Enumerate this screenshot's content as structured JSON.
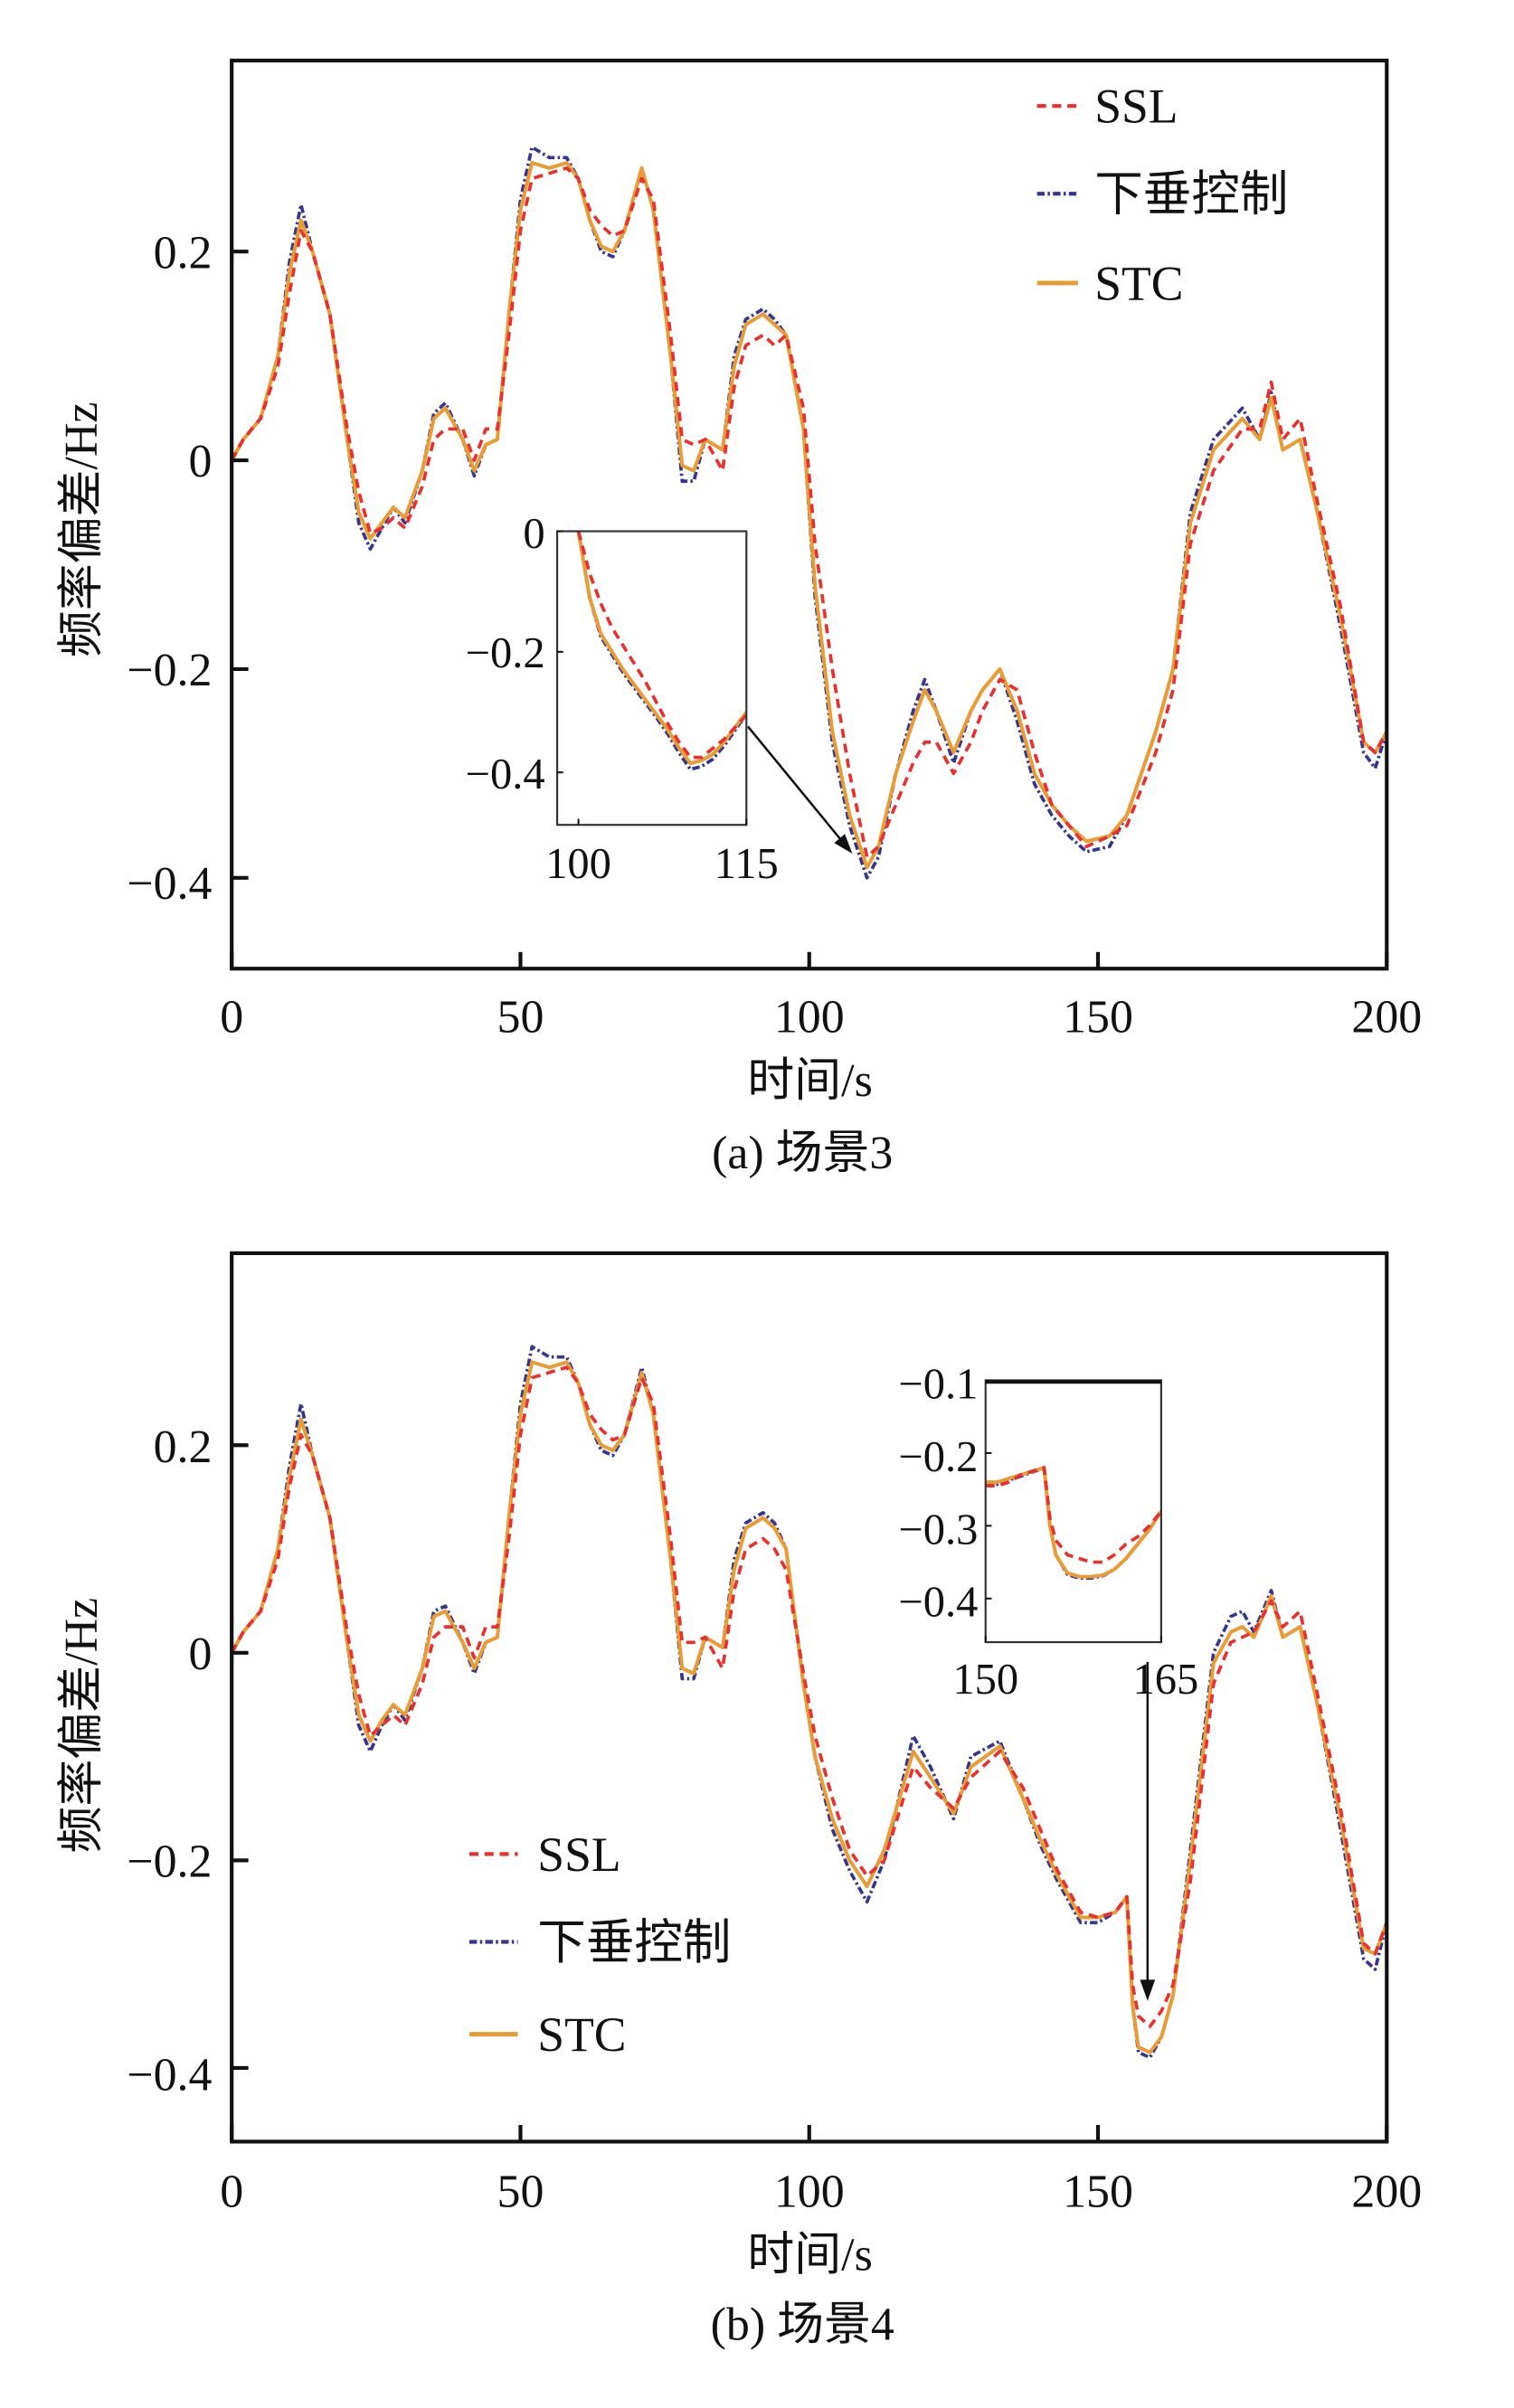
{
  "chart_data": [
    {
      "type": "line",
      "caption": "(a) 场景3",
      "xlabel": "时间/s",
      "ylabel": "频率偏差/Hz",
      "xlim": [
        0,
        200
      ],
      "ylim": [
        -0.487,
        0.383
      ],
      "xticks": [
        "0",
        "50",
        "100",
        "150",
        "200"
      ],
      "yticks": [
        "0.2",
        "0",
        "−0.2",
        "−0.4"
      ],
      "legend": {
        "position": "top-right",
        "entries": [
          "SSL",
          "下垂控制",
          "STC"
        ]
      },
      "colors": {
        "SSL": "#e8312f",
        "droop": "#35358f",
        "STC": "#e89c35"
      },
      "x": [
        0,
        2,
        5,
        8,
        10,
        12,
        14,
        17,
        20,
        22,
        24,
        26,
        28,
        30,
        33,
        35,
        37,
        40,
        42,
        44,
        46,
        48,
        50,
        52,
        55,
        58,
        60,
        62,
        64,
        66,
        68,
        71,
        73,
        76,
        78,
        80,
        82,
        85,
        87,
        89,
        92,
        94,
        96,
        99,
        101,
        104,
        107,
        110,
        112,
        115,
        118,
        120,
        122,
        125,
        128,
        130,
        133,
        136,
        139,
        142,
        145,
        148,
        152,
        155,
        160,
        163,
        166,
        170,
        175,
        178,
        180,
        182,
        185,
        188,
        192,
        196,
        198,
        200
      ],
      "series": [
        {
          "name": "SSL",
          "values": [
            0,
            0.02,
            0.04,
            0.09,
            0.16,
            0.22,
            0.2,
            0.14,
            0.03,
            -0.03,
            -0.07,
            -0.065,
            -0.055,
            -0.065,
            -0.025,
            0.02,
            0.03,
            0.03,
            0.0,
            0.03,
            0.03,
            0.12,
            0.22,
            0.27,
            0.275,
            0.28,
            0.27,
            0.24,
            0.225,
            0.215,
            0.22,
            0.27,
            0.25,
            0.12,
            0.02,
            0.015,
            0.02,
            -0.01,
            0.07,
            0.11,
            0.12,
            0.11,
            0.12,
            0.05,
            -0.08,
            -0.2,
            -0.3,
            -0.38,
            -0.37,
            -0.33,
            -0.29,
            -0.27,
            -0.27,
            -0.3,
            -0.27,
            -0.24,
            -0.21,
            -0.22,
            -0.28,
            -0.33,
            -0.35,
            -0.37,
            -0.36,
            -0.35,
            -0.28,
            -0.22,
            -0.08,
            -0.01,
            0.03,
            0.03,
            0.075,
            0.02,
            0.04,
            -0.04,
            -0.14,
            -0.27,
            -0.28,
            -0.26
          ]
        },
        {
          "name": "下垂控制",
          "values": [
            0,
            0.02,
            0.04,
            0.1,
            0.19,
            0.245,
            0.2,
            0.14,
            0.02,
            -0.06,
            -0.085,
            -0.065,
            -0.045,
            -0.06,
            -0.01,
            0.045,
            0.055,
            0.02,
            -0.015,
            0.015,
            0.02,
            0.14,
            0.25,
            0.3,
            0.29,
            0.29,
            0.27,
            0.23,
            0.2,
            0.195,
            0.22,
            0.28,
            0.24,
            0.1,
            -0.02,
            -0.02,
            0.02,
            0.01,
            0.1,
            0.135,
            0.145,
            0.135,
            0.12,
            0.03,
            -0.13,
            -0.27,
            -0.35,
            -0.4,
            -0.38,
            -0.3,
            -0.24,
            -0.21,
            -0.24,
            -0.29,
            -0.24,
            -0.22,
            -0.2,
            -0.25,
            -0.31,
            -0.34,
            -0.36,
            -0.375,
            -0.37,
            -0.34,
            -0.26,
            -0.2,
            -0.05,
            0.02,
            0.05,
            0.02,
            0.065,
            0.01,
            0.02,
            -0.05,
            -0.16,
            -0.28,
            -0.295,
            -0.26
          ]
        },
        {
          "name": "STC",
          "values": [
            0,
            0.02,
            0.04,
            0.1,
            0.18,
            0.23,
            0.2,
            0.14,
            0.02,
            -0.05,
            -0.075,
            -0.06,
            -0.045,
            -0.055,
            -0.01,
            0.04,
            0.05,
            0.02,
            -0.01,
            0.015,
            0.02,
            0.14,
            0.24,
            0.285,
            0.28,
            0.285,
            0.27,
            0.23,
            0.205,
            0.2,
            0.22,
            0.28,
            0.24,
            0.1,
            -0.005,
            -0.01,
            0.02,
            0.01,
            0.09,
            0.13,
            0.14,
            0.13,
            0.12,
            0.03,
            -0.12,
            -0.26,
            -0.34,
            -0.39,
            -0.37,
            -0.3,
            -0.25,
            -0.22,
            -0.24,
            -0.28,
            -0.24,
            -0.22,
            -0.2,
            -0.24,
            -0.3,
            -0.33,
            -0.35,
            -0.365,
            -0.36,
            -0.34,
            -0.26,
            -0.2,
            -0.06,
            0.01,
            0.04,
            0.02,
            0.06,
            0.01,
            0.02,
            -0.05,
            -0.15,
            -0.27,
            -0.28,
            -0.26
          ]
        }
      ],
      "inset": {
        "xlim": [
          98.1,
          115
        ],
        "ylim": [
          -0.487,
          0
        ],
        "xticks": [
          "100",
          "115"
        ],
        "yticks": [
          "0",
          "−0.2",
          "−0.4"
        ],
        "x": [
          100,
          101,
          102,
          103,
          104,
          105,
          106,
          107,
          108,
          109,
          110,
          111,
          112,
          113,
          114,
          115
        ],
        "series": [
          {
            "name": "SSL",
            "values": [
              0,
              -0.07,
              -0.12,
              -0.16,
              -0.19,
              -0.22,
              -0.25,
              -0.285,
              -0.32,
              -0.35,
              -0.375,
              -0.375,
              -0.36,
              -0.345,
              -0.325,
              -0.305
            ]
          },
          {
            "name": "下垂控制",
            "values": [
              0,
              -0.11,
              -0.175,
              -0.205,
              -0.235,
              -0.26,
              -0.285,
              -0.31,
              -0.337,
              -0.368,
              -0.395,
              -0.39,
              -0.378,
              -0.356,
              -0.33,
              -0.303
            ]
          },
          {
            "name": "STC",
            "values": [
              0,
              -0.11,
              -0.17,
              -0.2,
              -0.23,
              -0.255,
              -0.28,
              -0.305,
              -0.33,
              -0.36,
              -0.385,
              -0.38,
              -0.37,
              -0.35,
              -0.325,
              -0.3
            ]
          }
        ]
      }
    },
    {
      "type": "line",
      "caption": "(b) 场景4",
      "xlabel": "时间/s",
      "ylabel": "频率偏差/Hz",
      "xlim": [
        0,
        200
      ],
      "ylim": [
        -0.471,
        0.385
      ],
      "xticks": [
        "0",
        "50",
        "100",
        "150",
        "200"
      ],
      "yticks": [
        "0.2",
        "0",
        "−0.2",
        "−0.4"
      ],
      "legend": {
        "position": "bottom-left",
        "entries": [
          "SSL",
          "下垂控制",
          "STC"
        ]
      },
      "colors": {
        "SSL": "#e8312f",
        "droop": "#35358f",
        "STC": "#e89c35"
      },
      "x": [
        0,
        2,
        5,
        8,
        10,
        12,
        14,
        17,
        20,
        22,
        24,
        26,
        28,
        30,
        33,
        35,
        37,
        40,
        42,
        44,
        46,
        48,
        50,
        52,
        55,
        58,
        60,
        62,
        64,
        66,
        68,
        71,
        73,
        76,
        78,
        80,
        82,
        85,
        87,
        89,
        92,
        94,
        96,
        99,
        101,
        104,
        107,
        110,
        113,
        118,
        121,
        125,
        128,
        133,
        137,
        140,
        143,
        147,
        150,
        153,
        155,
        156,
        157,
        159,
        161,
        163,
        166,
        170,
        173,
        175,
        177,
        180,
        182,
        185,
        188,
        192,
        196,
        198,
        200
      ],
      "series": [
        {
          "name": "SSL",
          "values": [
            0,
            0.02,
            0.04,
            0.09,
            0.16,
            0.21,
            0.19,
            0.13,
            0.02,
            -0.04,
            -0.08,
            -0.07,
            -0.06,
            -0.07,
            -0.03,
            0.015,
            0.025,
            0.025,
            -0.005,
            0.025,
            0.025,
            0.11,
            0.21,
            0.265,
            0.27,
            0.275,
            0.26,
            0.23,
            0.215,
            0.205,
            0.21,
            0.265,
            0.24,
            0.11,
            0.01,
            0.01,
            0.015,
            -0.015,
            0.06,
            0.1,
            0.11,
            0.1,
            0.08,
            -0.02,
            -0.08,
            -0.14,
            -0.19,
            -0.215,
            -0.2,
            -0.11,
            -0.13,
            -0.15,
            -0.12,
            -0.095,
            -0.13,
            -0.17,
            -0.21,
            -0.25,
            -0.255,
            -0.25,
            -0.235,
            -0.32,
            -0.35,
            -0.36,
            -0.345,
            -0.32,
            -0.22,
            -0.03,
            0.01,
            0.015,
            0.02,
            0.05,
            0.025,
            0.04,
            -0.04,
            -0.15,
            -0.28,
            -0.29,
            -0.26
          ]
        },
        {
          "name": "下垂控制",
          "values": [
            0,
            0.02,
            0.04,
            0.1,
            0.18,
            0.24,
            0.19,
            0.13,
            0.01,
            -0.07,
            -0.095,
            -0.07,
            -0.05,
            -0.065,
            -0.015,
            0.04,
            0.045,
            0.01,
            -0.02,
            0.01,
            0.015,
            0.13,
            0.24,
            0.295,
            0.285,
            0.285,
            0.26,
            0.22,
            0.195,
            0.19,
            0.21,
            0.275,
            0.23,
            0.09,
            -0.025,
            -0.025,
            0.015,
            0.005,
            0.09,
            0.125,
            0.135,
            0.125,
            0.1,
            -0.03,
            -0.1,
            -0.17,
            -0.21,
            -0.24,
            -0.2,
            -0.08,
            -0.11,
            -0.16,
            -0.1,
            -0.085,
            -0.14,
            -0.185,
            -0.22,
            -0.26,
            -0.26,
            -0.25,
            -0.235,
            -0.34,
            -0.385,
            -0.39,
            -0.37,
            -0.33,
            -0.19,
            0.0,
            0.035,
            0.04,
            0.02,
            0.06,
            0.015,
            0.025,
            -0.05,
            -0.17,
            -0.295,
            -0.305,
            -0.26
          ]
        },
        {
          "name": "STC",
          "values": [
            0,
            0.02,
            0.04,
            0.1,
            0.17,
            0.225,
            0.19,
            0.13,
            0.01,
            -0.06,
            -0.085,
            -0.065,
            -0.05,
            -0.06,
            -0.015,
            0.035,
            0.04,
            0.01,
            -0.015,
            0.01,
            0.015,
            0.13,
            0.23,
            0.28,
            0.275,
            0.28,
            0.26,
            0.22,
            0.2,
            0.195,
            0.21,
            0.27,
            0.23,
            0.09,
            -0.015,
            -0.02,
            0.015,
            0.005,
            0.08,
            0.12,
            0.13,
            0.12,
            0.1,
            -0.03,
            -0.1,
            -0.16,
            -0.2,
            -0.225,
            -0.19,
            -0.095,
            -0.12,
            -0.155,
            -0.11,
            -0.09,
            -0.14,
            -0.18,
            -0.215,
            -0.255,
            -0.255,
            -0.25,
            -0.235,
            -0.34,
            -0.38,
            -0.385,
            -0.37,
            -0.33,
            -0.2,
            -0.01,
            0.02,
            0.025,
            0.015,
            0.055,
            0.015,
            0.025,
            -0.05,
            -0.16,
            -0.285,
            -0.29,
            -0.26
          ]
        }
      ],
      "inset": {
        "xlim": [
          150,
          165
        ],
        "ylim": [
          -0.46,
          -0.1
        ],
        "xticks": [
          "150",
          "165"
        ],
        "yticks": [
          "−0.1",
          "−0.2",
          "−0.3",
          "−0.4"
        ],
        "x": [
          150,
          151,
          152,
          153,
          154,
          155,
          155.5,
          156,
          157,
          158,
          159,
          160,
          161,
          162,
          163,
          164,
          165
        ],
        "series": [
          {
            "name": "SSL",
            "values": [
              -0.245,
              -0.245,
              -0.24,
              -0.23,
              -0.225,
              -0.22,
              -0.29,
              -0.32,
              -0.34,
              -0.345,
              -0.35,
              -0.35,
              -0.34,
              -0.325,
              -0.315,
              -0.3,
              -0.28
            ]
          },
          {
            "name": "下垂控制",
            "values": [
              -0.245,
              -0.243,
              -0.237,
              -0.232,
              -0.226,
              -0.221,
              -0.3,
              -0.34,
              -0.367,
              -0.372,
              -0.372,
              -0.369,
              -0.36,
              -0.345,
              -0.325,
              -0.305,
              -0.28
            ]
          },
          {
            "name": "STC",
            "values": [
              -0.24,
              -0.24,
              -0.235,
              -0.23,
              -0.225,
              -0.22,
              -0.3,
              -0.34,
              -0.365,
              -0.37,
              -0.37,
              -0.368,
              -0.36,
              -0.345,
              -0.325,
              -0.305,
              -0.28
            ]
          }
        ]
      }
    }
  ]
}
